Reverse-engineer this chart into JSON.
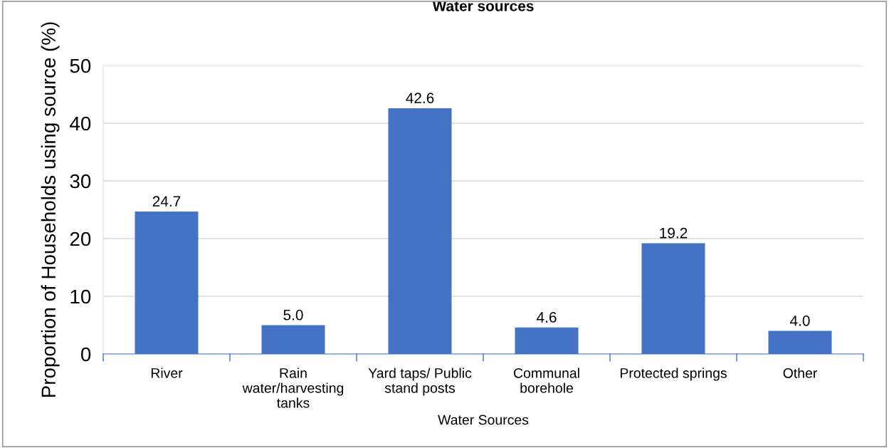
{
  "chart_data": {
    "type": "bar",
    "title": "Water sources",
    "xlabel": "Water Sources",
    "ylabel": "Proportion of Households using source (%)",
    "categories": [
      "River",
      "Rain\nwater/harvesting\ntanks",
      "Yard taps/ Public\nstand posts",
      "Communal\nborehole",
      "Protected springs",
      "Other"
    ],
    "values": [
      24.7,
      5.0,
      42.6,
      4.6,
      19.2,
      4.0
    ],
    "color": "#4472c4",
    "ylim": [
      0,
      50
    ],
    "yticks": [
      0,
      10,
      20,
      30,
      40,
      50
    ],
    "grid": "y",
    "value_labels": [
      "24.7",
      "5.0",
      "42.6",
      "4.6",
      "19.2",
      "4.0"
    ]
  }
}
